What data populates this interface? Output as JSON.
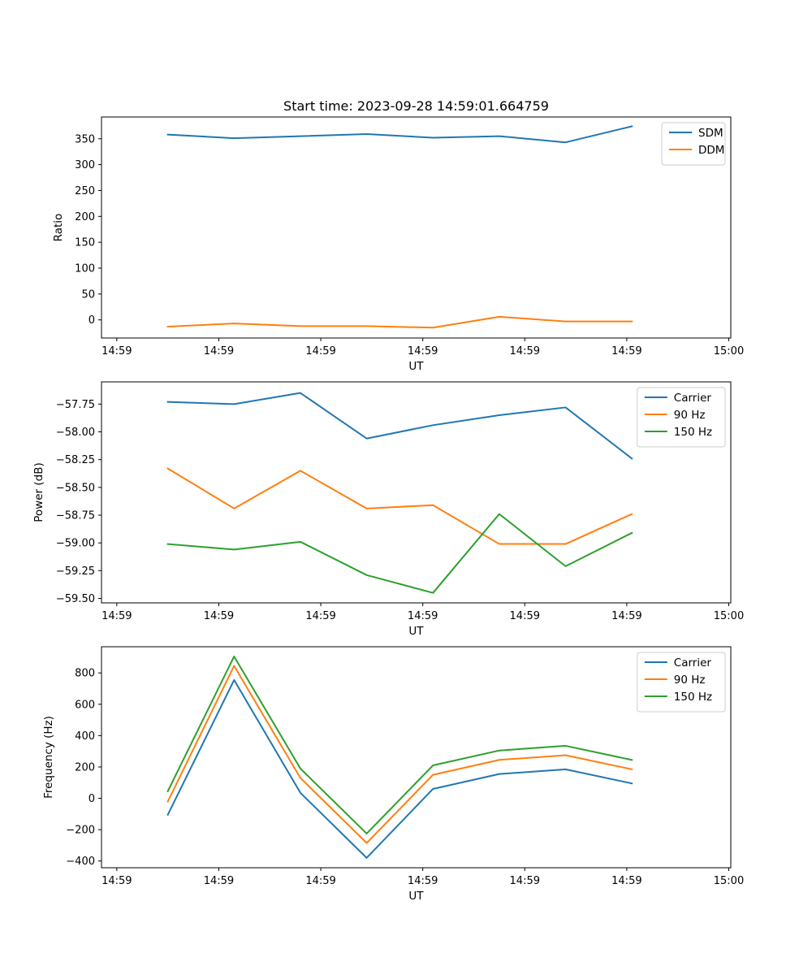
{
  "figure": {
    "title": "Start time: 2023-09-28 14:59:01.664759"
  },
  "chart_data": [
    {
      "type": "line",
      "title": "Start time: 2023-09-28 14:59:01.664759",
      "xlabel": "UT",
      "ylabel": "Ratio",
      "x_tick_labels": [
        "14:59",
        "14:59",
        "14:59",
        "14:59",
        "14:59",
        "14:59",
        "15:00"
      ],
      "x_tick_values": [
        0,
        1,
        2,
        3,
        4,
        5,
        6
      ],
      "xlim": [
        -0.15,
        6.02
      ],
      "x": [
        0.5,
        1.15,
        1.8,
        2.45,
        3.1,
        3.75,
        4.4,
        5.05
      ],
      "ylim": [
        -35,
        392
      ],
      "y_ticks": [
        0,
        50,
        100,
        150,
        200,
        250,
        300,
        350
      ],
      "legend_position": "top-right",
      "series": [
        {
          "name": "SDM",
          "color": "#1f77b4",
          "values": [
            358,
            351,
            355,
            359,
            352,
            355,
            343,
            374
          ]
        },
        {
          "name": "DDM",
          "color": "#ff7f0e",
          "values": [
            -13,
            -7,
            -12,
            -12,
            -15,
            6,
            -3,
            -3
          ]
        }
      ]
    },
    {
      "type": "line",
      "title": "",
      "xlabel": "UT",
      "ylabel": "Power (dB)",
      "x_tick_labels": [
        "14:59",
        "14:59",
        "14:59",
        "14:59",
        "14:59",
        "14:59",
        "15:00"
      ],
      "x_tick_values": [
        0,
        1,
        2,
        3,
        4,
        5,
        6
      ],
      "xlim": [
        -0.15,
        6.02
      ],
      "x": [
        0.5,
        1.15,
        1.8,
        2.45,
        3.1,
        3.75,
        4.4,
        5.05
      ],
      "ylim": [
        -59.54,
        -57.55
      ],
      "y_ticks": [
        -59.5,
        -59.25,
        -59.0,
        -58.75,
        -58.5,
        -58.25,
        -58.0,
        -57.75
      ],
      "y_tick_labels": [
        "−59.50",
        "−59.25",
        "−59.00",
        "−58.75",
        "−58.50",
        "−58.25",
        "−58.00",
        "−57.75"
      ],
      "legend_position": "top-right",
      "series": [
        {
          "name": "Carrier",
          "color": "#1f77b4",
          "values": [
            -57.73,
            -57.75,
            -57.65,
            -58.06,
            -57.94,
            -57.85,
            -57.78,
            -58.24
          ]
        },
        {
          "name": "90 Hz",
          "color": "#ff7f0e",
          "values": [
            -58.33,
            -58.69,
            -58.35,
            -58.69,
            -58.66,
            -59.01,
            -59.01,
            -58.74
          ]
        },
        {
          "name": "150 Hz",
          "color": "#2ca02c",
          "values": [
            -59.01,
            -59.06,
            -58.99,
            -59.29,
            -59.45,
            -58.74,
            -59.21,
            -58.91
          ]
        }
      ]
    },
    {
      "type": "line",
      "title": "",
      "xlabel": "UT",
      "ylabel": "Frequency (Hz)",
      "x_tick_labels": [
        "14:59",
        "14:59",
        "14:59",
        "14:59",
        "14:59",
        "14:59",
        "15:00"
      ],
      "x_tick_values": [
        0,
        1,
        2,
        3,
        4,
        5,
        6
      ],
      "xlim": [
        -0.15,
        6.02
      ],
      "x": [
        0.5,
        1.15,
        1.8,
        2.45,
        3.1,
        3.75,
        4.4,
        5.05
      ],
      "ylim": [
        -443,
        967
      ],
      "y_ticks": [
        -400,
        -200,
        0,
        200,
        400,
        600,
        800
      ],
      "y_tick_labels": [
        "−400",
        "−200",
        "0",
        "200",
        "400",
        "600",
        "800"
      ],
      "legend_position": "top-right",
      "series": [
        {
          "name": "Carrier",
          "color": "#1f77b4",
          "values": [
            -105,
            755,
            35,
            -380,
            60,
            155,
            185,
            95
          ]
        },
        {
          "name": "90 Hz",
          "color": "#ff7f0e",
          "values": [
            -20,
            845,
            130,
            -285,
            150,
            245,
            275,
            185
          ]
        },
        {
          "name": "150 Hz",
          "color": "#2ca02c",
          "values": [
            45,
            905,
            190,
            -225,
            210,
            305,
            335,
            245
          ]
        }
      ]
    }
  ]
}
